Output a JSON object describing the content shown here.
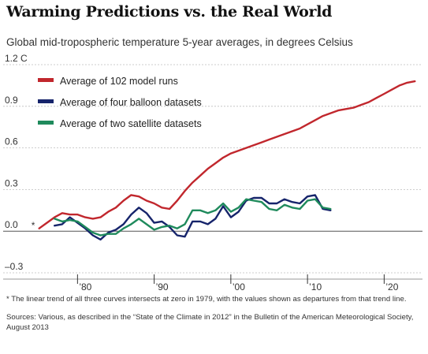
{
  "chart_data": {
    "type": "line",
    "title": "Warming Predictions vs. the Real World",
    "subtitle": "Global mid-tropospheric temperature 5-year averages, in degrees Celsius",
    "ylim": [
      -0.3,
      1.2
    ],
    "xlim": [
      1974,
      2025
    ],
    "yticks": [
      {
        "value": 1.2,
        "label": "1.2 C"
      },
      {
        "value": 0.9,
        "label": "0.9"
      },
      {
        "value": 0.6,
        "label": "0.6"
      },
      {
        "value": 0.3,
        "label": "0.3"
      },
      {
        "value": 0.0,
        "label": "0.0"
      },
      {
        "value": -0.3,
        "label": "–0.3"
      }
    ],
    "xticks": [
      {
        "value": 1980,
        "label": "’80"
      },
      {
        "value": 1990,
        "label": "’90"
      },
      {
        "value": 2000,
        "label": "’00"
      },
      {
        "value": 2010,
        "label": "’10"
      },
      {
        "value": 2020,
        "label": "’20"
      }
    ],
    "legend_position": "top-left",
    "grid": true,
    "marker": "*",
    "marker_point": {
      "x": 1975,
      "y": 0.03
    },
    "series": [
      {
        "name": "Average of 102 model runs",
        "color": "#c1272d",
        "x": [
          1975,
          1976,
          1977,
          1978,
          1979,
          1980,
          1981,
          1982,
          1983,
          1984,
          1985,
          1986,
          1987,
          1988,
          1989,
          1990,
          1991,
          1992,
          1993,
          1994,
          1995,
          1996,
          1997,
          1998,
          1999,
          2000,
          2001,
          2002,
          2003,
          2004,
          2005,
          2006,
          2007,
          2008,
          2009,
          2010,
          2011,
          2012,
          2013,
          2014,
          2015,
          2016,
          2017,
          2018,
          2019,
          2020,
          2021,
          2022,
          2023,
          2024
        ],
        "values": [
          0.02,
          0.06,
          0.1,
          0.13,
          0.12,
          0.12,
          0.1,
          0.09,
          0.1,
          0.14,
          0.17,
          0.22,
          0.26,
          0.25,
          0.22,
          0.2,
          0.17,
          0.16,
          0.22,
          0.29,
          0.35,
          0.4,
          0.45,
          0.49,
          0.53,
          0.56,
          0.58,
          0.6,
          0.62,
          0.64,
          0.66,
          0.68,
          0.7,
          0.72,
          0.74,
          0.77,
          0.8,
          0.83,
          0.85,
          0.87,
          0.88,
          0.89,
          0.91,
          0.93,
          0.96,
          0.99,
          1.02,
          1.05,
          1.07,
          1.08
        ]
      },
      {
        "name": "Average of four balloon datasets",
        "color": "#16246b",
        "x": [
          1977,
          1978,
          1979,
          1980,
          1981,
          1982,
          1983,
          1984,
          1985,
          1986,
          1987,
          1988,
          1989,
          1990,
          1991,
          1992,
          1993,
          1994,
          1995,
          1996,
          1997,
          1998,
          1999,
          2000,
          2001,
          2002,
          2003,
          2004,
          2005,
          2006,
          2007,
          2008,
          2009,
          2010,
          2011,
          2012,
          2013
        ],
        "values": [
          0.04,
          0.05,
          0.1,
          0.06,
          0.02,
          -0.03,
          -0.06,
          -0.01,
          0.01,
          0.05,
          0.12,
          0.17,
          0.13,
          0.06,
          0.07,
          0.03,
          -0.03,
          -0.04,
          0.07,
          0.07,
          0.05,
          0.09,
          0.18,
          0.1,
          0.14,
          0.22,
          0.24,
          0.24,
          0.2,
          0.2,
          0.23,
          0.21,
          0.2,
          0.25,
          0.26,
          0.16,
          0.15
        ]
      },
      {
        "name": "Average of two satellite datasets",
        "color": "#1f8a5c",
        "x": [
          1977,
          1978,
          1979,
          1980,
          1981,
          1982,
          1983,
          1984,
          1985,
          1986,
          1987,
          1988,
          1989,
          1990,
          1991,
          1992,
          1993,
          1994,
          1995,
          1996,
          1997,
          1998,
          1999,
          2000,
          2001,
          2002,
          2003,
          2004,
          2005,
          2006,
          2007,
          2008,
          2009,
          2010,
          2011,
          2012,
          2013
        ],
        "values": [
          0.09,
          0.07,
          0.08,
          0.07,
          0.03,
          -0.01,
          -0.03,
          -0.02,
          -0.02,
          0.02,
          0.05,
          0.09,
          0.05,
          0.01,
          0.03,
          0.04,
          0.02,
          0.05,
          0.15,
          0.15,
          0.13,
          0.15,
          0.2,
          0.14,
          0.17,
          0.23,
          0.22,
          0.21,
          0.16,
          0.15,
          0.19,
          0.17,
          0.16,
          0.22,
          0.23,
          0.17,
          0.16
        ]
      }
    ]
  },
  "footnote": "* The linear trend of all three curves intersects at zero in 1979, with the values shown as departures from that trend line.",
  "sources": "Sources: Various, as described in the “State of the Climate in 2012” in the Bulletin of the American Meteorological Society, August 2013"
}
